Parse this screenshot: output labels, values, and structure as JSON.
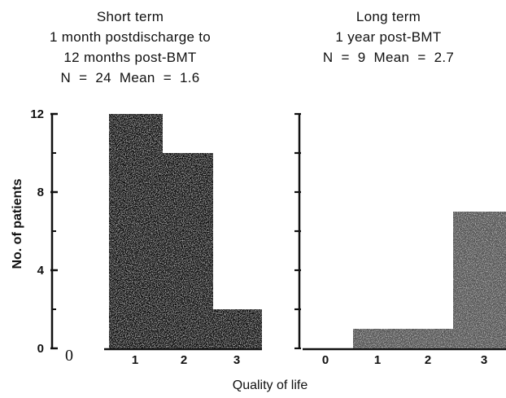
{
  "chart_data": [
    {
      "type": "bar",
      "title": "Short term\n1 month postdischarge to\n12 months post-BMT\nN  =  24  Mean  =  1.6",
      "categories": [
        "0",
        "1",
        "2",
        "3"
      ],
      "values": [
        0,
        12,
        10,
        2
      ],
      "ylabel": "No. of patients",
      "yticks": [
        "0",
        "4",
        "8",
        "12"
      ],
      "ylim": [
        0,
        12
      ],
      "bar_color": "#111111",
      "zero_label": "0"
    },
    {
      "type": "bar",
      "title": "Long term\n1 year post-BMT\nN  =  9  Mean  =  2.7",
      "categories": [
        "0",
        "1",
        "2",
        "3"
      ],
      "values": [
        0,
        1,
        1,
        7
      ],
      "ylim": [
        0,
        12
      ],
      "bar_color": "#555555"
    }
  ],
  "xlabel": "Quality  of  life"
}
